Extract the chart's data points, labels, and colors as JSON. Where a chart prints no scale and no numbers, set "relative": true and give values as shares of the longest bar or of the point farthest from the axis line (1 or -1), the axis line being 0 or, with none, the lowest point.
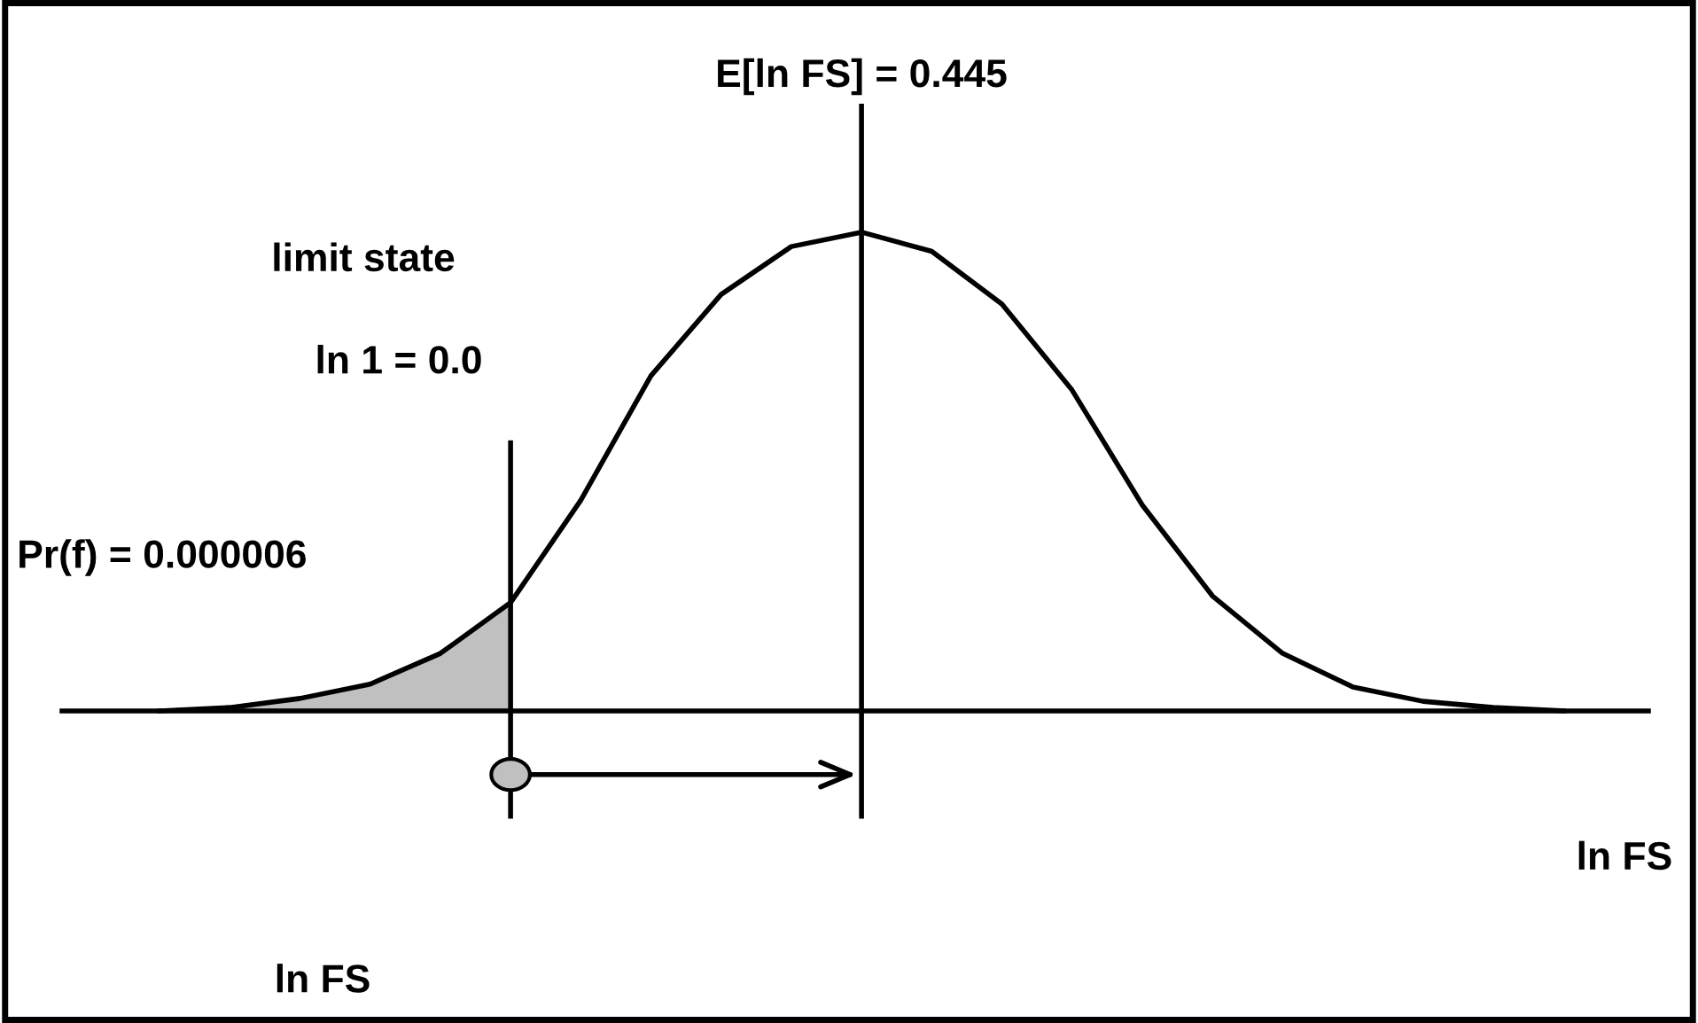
{
  "chart_data": {
    "type": "line",
    "relative": true,
    "marker": "none",
    "line_style": "solid",
    "categories": [
      null,
      null,
      null,
      null,
      null,
      null,
      null,
      null,
      null,
      null,
      null,
      null,
      null,
      null,
      null,
      null,
      null,
      null,
      null,
      null,
      null
    ],
    "series": [
      {
        "color": "#000000",
        "values": [
          0,
          0.007,
          0.026,
          0.056,
          0.12,
          0.226,
          0.44,
          0.7,
          0.87,
          0.97,
          1,
          0.96,
          0.85,
          0.67,
          0.43,
          0.24,
          0.12,
          0.05,
          0.02,
          0.007,
          0
        ]
      },
      {
        "type": "area",
        "color": "#c0c0c0",
        "values": [
          0,
          0.007,
          0.026,
          0.056,
          0.12,
          0.226,
          null,
          null,
          null,
          null,
          null,
          null,
          null,
          null,
          null,
          null,
          null,
          null,
          null,
          null,
          null
        ]
      }
    ],
    "annotations": [
      "E[ln FS] = 0.445",
      "limit state",
      "ln 1 = 0.0",
      "Pr(f) = 0.000006",
      "ln FS",
      "ln FS"
    ]
  }
}
